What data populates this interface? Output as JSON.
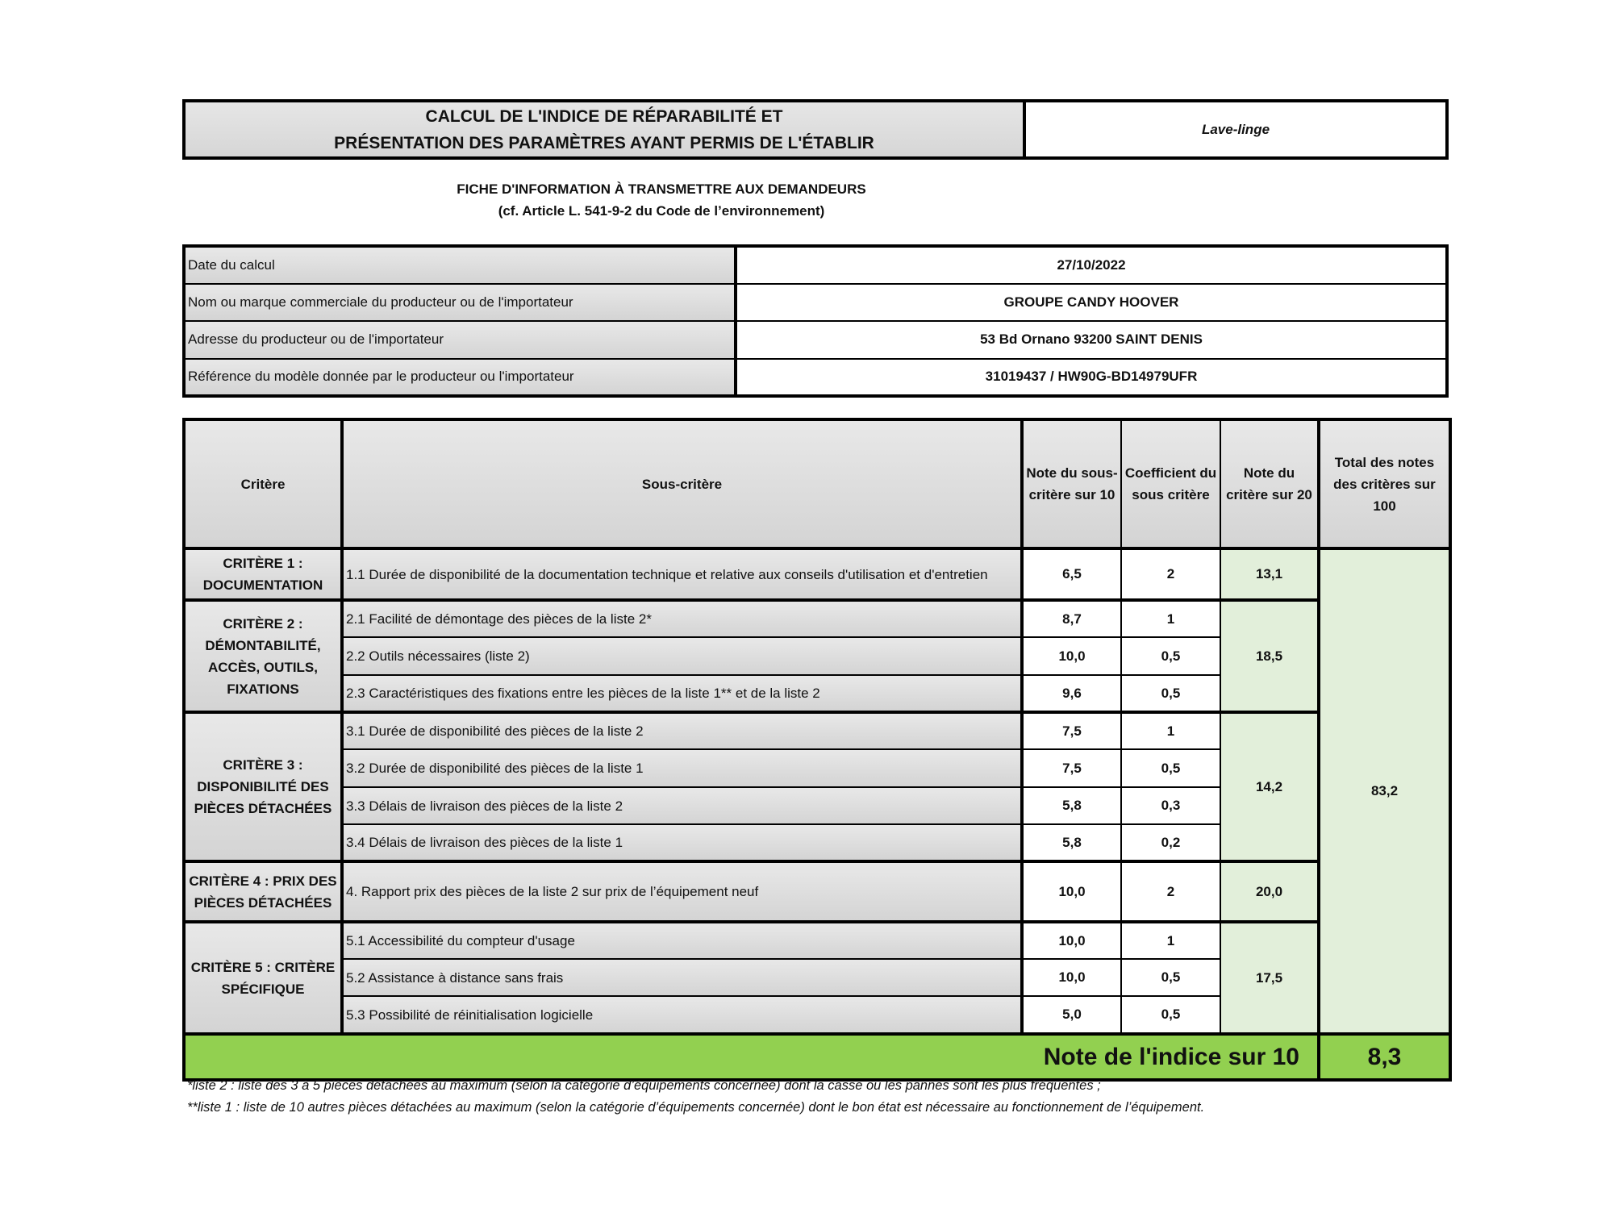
{
  "header": {
    "title_line1": "CALCUL DE L'INDICE DE RÉPARABILITÉ ET",
    "title_line2": "PRÉSENTATION DES PARAMÈTRES AYANT PERMIS DE L'ÉTABLIR",
    "product": "Lave-linge"
  },
  "subtitle": {
    "line1": "FICHE D'INFORMATION À TRANSMETTRE AUX DEMANDEURS",
    "line2": "(cf. Article L. 541-9-2 du Code de l’environnement)"
  },
  "info": [
    {
      "label": "Date du calcul",
      "value": "27/10/2022"
    },
    {
      "label": "Nom ou marque commerciale du producteur ou de l'importateur",
      "value": "GROUPE CANDY HOOVER"
    },
    {
      "label": "Adresse du producteur ou de l'importateur",
      "value": "53 Bd Ornano 93200 SAINT DENIS"
    },
    {
      "label": "Référence du modèle donnée par le producteur ou l'importateur",
      "value": "31019437 / HW90G-BD14979UFR"
    }
  ],
  "columns": {
    "critere": "Critère",
    "sous_critere": "Sous-critère",
    "note_sous": "Note du sous-critère sur 10",
    "coef": "Coefficient du sous critère",
    "note_crit": "Note du critère sur 20",
    "total": "Total des notes des critères sur 100"
  },
  "criteria": [
    {
      "name": "CRITÈRE 1 : DOCUMENTATION",
      "score": "13,1",
      "subs": [
        {
          "label": "1.1 Durée de disponibilité de la documentation technique et relative aux conseils d'utilisation et d'entretien",
          "note": "6,5",
          "coef": "2"
        }
      ]
    },
    {
      "name": "CRITÈRE 2 : DÉMONTABILITÉ, ACCÈS, OUTILS, FIXATIONS",
      "score": "18,5",
      "subs": [
        {
          "label": "2.1 Facilité de démontage des pièces de la liste 2*",
          "note": "8,7",
          "coef": "1"
        },
        {
          "label": "2.2 Outils nécessaires (liste 2)",
          "note": "10,0",
          "coef": "0,5"
        },
        {
          "label": "2.3 Caractéristiques des fixations entre les pièces de la liste 1** et de la liste 2",
          "note": "9,6",
          "coef": "0,5"
        }
      ]
    },
    {
      "name": "CRITÈRE 3 : DISPONIBILITÉ DES PIÈCES DÉTACHÉES",
      "score": "14,2",
      "subs": [
        {
          "label": "3.1 Durée de disponibilité des pièces de la liste 2",
          "note": "7,5",
          "coef": "1"
        },
        {
          "label": "3.2 Durée de disponibilité des pièces de la liste 1",
          "note": "7,5",
          "coef": "0,5"
        },
        {
          "label": "3.3 Délais de livraison des pièces de la liste 2",
          "note": "5,8",
          "coef": "0,3"
        },
        {
          "label": "3.4 Délais de livraison des pièces de la liste 1",
          "note": "5,8",
          "coef": "0,2"
        }
      ]
    },
    {
      "name": "CRITÈRE 4 : PRIX DES PIÈCES DÉTACHÉES",
      "score": "20,0",
      "subs": [
        {
          "label": "4. Rapport prix des pièces de la liste 2 sur prix de l’équipement neuf",
          "note": "10,0",
          "coef": "2"
        }
      ]
    },
    {
      "name": "CRITÈRE 5 : CRITÈRE SPÉCIFIQUE",
      "score": "17,5",
      "subs": [
        {
          "label": "5.1 Accessibilité du compteur d'usage",
          "note": "10,0",
          "coef": "1"
        },
        {
          "label": "5.2 Assistance à distance sans frais",
          "note": "10,0",
          "coef": "0,5"
        },
        {
          "label": "5.3 Possibilité de réinitialisation logicielle",
          "note": "5,0",
          "coef": "0,5"
        }
      ]
    }
  ],
  "total": "83,2",
  "final": {
    "label": "Note de l'indice sur 10",
    "value": "8,3"
  },
  "footnotes": [
    "*liste 2 : liste des 3 à 5 pièces détachées au maximum (selon la catégorie d’équipements concernée) dont la casse ou les pannes sont les plus fréquentes ;",
    "**liste 1 : liste de 10 autres pièces détachées au maximum (selon la catégorie d’équipements concernée) dont le bon état est nécessaire au fonctionnement de l’équipement."
  ],
  "colors": {
    "header_gray": "#d9d9d9",
    "criterion_green": "#e2efda",
    "final_green": "#92d050"
  }
}
